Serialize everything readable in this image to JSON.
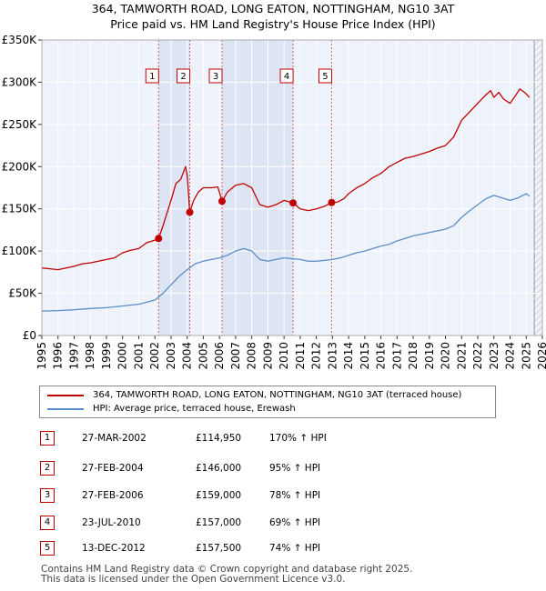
{
  "chart_data": {
    "type": "line",
    "title": "364, TAMWORTH ROAD, LONG EATON, NOTTINGHAM, NG10 3AT",
    "subtitle": "Price paid vs. HM Land Registry's House Price Index (HPI)",
    "xlabel": "",
    "ylabel": "",
    "xlim": [
      1995,
      2026
    ],
    "ylim": [
      0,
      350000
    ],
    "y_ticks": [
      0,
      50000,
      100000,
      150000,
      200000,
      250000,
      300000,
      350000
    ],
    "y_tick_labels": [
      "£0",
      "£50K",
      "£100K",
      "£150K",
      "£200K",
      "£250K",
      "£300K",
      "£350K"
    ],
    "x_ticks": [
      1995,
      1996,
      1997,
      1998,
      1999,
      2000,
      2001,
      2002,
      2003,
      2004,
      2005,
      2006,
      2007,
      2008,
      2009,
      2010,
      2011,
      2012,
      2013,
      2014,
      2015,
      2016,
      2017,
      2018,
      2019,
      2020,
      2021,
      2022,
      2023,
      2024,
      2025,
      2026
    ],
    "x_tick_labels": [
      "1995",
      "1996",
      "1997",
      "1998",
      "1999",
      "2000",
      "2001",
      "2002",
      "2003",
      "2004",
      "2005",
      "2006",
      "2007",
      "2008",
      "2009",
      "2010",
      "2011",
      "2012",
      "2013",
      "2014",
      "2015",
      "2016",
      "2017",
      "2018",
      "2019",
      "2020",
      "2021",
      "2022",
      "2023",
      "2024",
      "2025",
      "2026"
    ],
    "grid": true,
    "series": [
      {
        "name": "364, TAMWORTH ROAD, LONG EATON, NOTTINGHAM, NG10 3AT (terraced house)",
        "color": "#c00000",
        "x": [
          1995.0,
          1995.5,
          1996.0,
          1996.5,
          1997.0,
          1997.5,
          1998.0,
          1998.5,
          1999.0,
          1999.5,
          2000.0,
          2000.5,
          2001.0,
          2001.5,
          2002.0,
          2002.23,
          2002.5,
          2003.0,
          2003.3,
          2003.6,
          2003.9,
          2004.0,
          2004.16,
          2004.4,
          2004.7,
          2005.0,
          2005.5,
          2005.9,
          2006.16,
          2006.5,
          2007.0,
          2007.5,
          2008.0,
          2008.5,
          2009.0,
          2009.5,
          2010.0,
          2010.56,
          2011.0,
          2011.5,
          2012.0,
          2012.5,
          2012.95,
          2013.3,
          2013.7,
          2014.0,
          2014.5,
          2015.0,
          2015.5,
          2016.0,
          2016.5,
          2017.0,
          2017.5,
          2018.0,
          2018.5,
          2019.0,
          2019.5,
          2020.0,
          2020.5,
          2021.0,
          2021.5,
          2022.0,
          2022.5,
          2022.8,
          2023.0,
          2023.3,
          2023.6,
          2024.0,
          2024.3,
          2024.6,
          2024.9,
          2025.2
        ],
        "values": [
          80000,
          79000,
          78000,
          80000,
          82000,
          85000,
          86000,
          88000,
          90000,
          92000,
          98000,
          101000,
          103000,
          110000,
          113000,
          114950,
          130000,
          160000,
          180000,
          185000,
          200000,
          190000,
          146000,
          160000,
          170000,
          175000,
          175000,
          176000,
          159000,
          170000,
          178000,
          180000,
          175000,
          155000,
          152000,
          155000,
          160000,
          157000,
          150000,
          148000,
          150000,
          153000,
          157500,
          158000,
          162000,
          168000,
          175000,
          180000,
          187000,
          192000,
          200000,
          205000,
          210000,
          212000,
          215000,
          218000,
          222000,
          225000,
          235000,
          255000,
          265000,
          275000,
          285000,
          290000,
          282000,
          288000,
          280000,
          275000,
          283000,
          292000,
          288000,
          282000
        ]
      },
      {
        "name": "HPI: Average price, terraced house, Erewash",
        "color": "#5b8ec9",
        "x": [
          1995.0,
          1996.0,
          1997.0,
          1998.0,
          1999.0,
          2000.0,
          2001.0,
          2002.0,
          2002.5,
          2003.0,
          2003.5,
          2004.0,
          2004.5,
          2005.0,
          2005.5,
          2006.0,
          2006.5,
          2007.0,
          2007.5,
          2008.0,
          2008.5,
          2009.0,
          2009.5,
          2010.0,
          2010.5,
          2011.0,
          2011.5,
          2012.0,
          2012.5,
          2013.0,
          2013.5,
          2014.0,
          2014.5,
          2015.0,
          2015.5,
          2016.0,
          2016.5,
          2017.0,
          2017.5,
          2018.0,
          2018.5,
          2019.0,
          2019.5,
          2020.0,
          2020.5,
          2021.0,
          2021.5,
          2022.0,
          2022.5,
          2023.0,
          2023.5,
          2024.0,
          2024.5,
          2025.0,
          2025.2
        ],
        "values": [
          29000,
          29500,
          30500,
          32000,
          33000,
          35000,
          37000,
          42000,
          50000,
          60000,
          70000,
          78000,
          85000,
          88000,
          90000,
          92000,
          95000,
          100000,
          103000,
          100000,
          90000,
          88000,
          90000,
          92000,
          91000,
          90000,
          88000,
          88000,
          89000,
          90000,
          92000,
          95000,
          98000,
          100000,
          103000,
          106000,
          108000,
          112000,
          115000,
          118000,
          120000,
          122000,
          124000,
          126000,
          130000,
          140000,
          148000,
          155000,
          162000,
          166000,
          163000,
          160000,
          163000,
          168000,
          165000
        ]
      }
    ],
    "sales": [
      {
        "id": "1",
        "x": 2002.23,
        "value": 114950
      },
      {
        "id": "2",
        "x": 2004.16,
        "value": 146000
      },
      {
        "id": "3",
        "x": 2006.16,
        "value": 159000
      },
      {
        "id": "4",
        "x": 2010.56,
        "value": 157000
      },
      {
        "id": "5",
        "x": 2012.95,
        "value": 157500
      }
    ],
    "future_start": 2025.5
  },
  "legend": {
    "property": "364, TAMWORTH ROAD, LONG EATON, NOTTINGHAM, NG10 3AT (terraced house)",
    "hpi": "HPI: Average price, terraced house, Erewash"
  },
  "colors": {
    "property": "#c00000",
    "hpi": "#5b8ec9",
    "plot_bg": "#eef2fa",
    "shade": "#dde5f4"
  },
  "sales_table": [
    {
      "num": "1",
      "date": "27-MAR-2002",
      "price": "£114,950",
      "hpi": "170% ↑ HPI"
    },
    {
      "num": "2",
      "date": "27-FEB-2004",
      "price": "£146,000",
      "hpi": "95% ↑ HPI"
    },
    {
      "num": "3",
      "date": "27-FEB-2006",
      "price": "£159,000",
      "hpi": "78% ↑ HPI"
    },
    {
      "num": "4",
      "date": "23-JUL-2010",
      "price": "£157,000",
      "hpi": "69% ↑ HPI"
    },
    {
      "num": "5",
      "date": "13-DEC-2012",
      "price": "£157,500",
      "hpi": "74% ↑ HPI"
    }
  ],
  "footer": {
    "line1": "Contains HM Land Registry data © Crown copyright and database right 2025.",
    "line2": "This data is licensed under the Open Government Licence v3.0."
  }
}
